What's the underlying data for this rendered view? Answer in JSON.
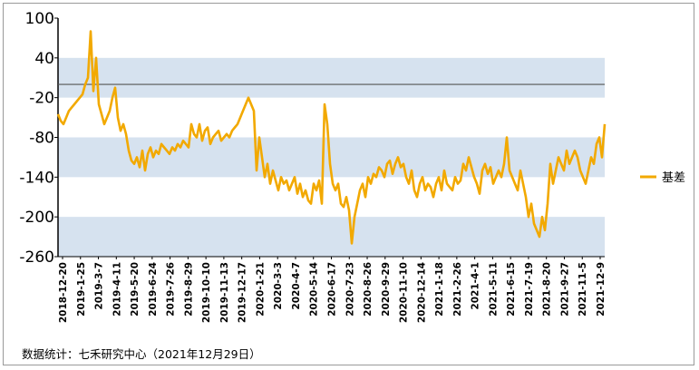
{
  "chart_data": {
    "type": "line",
    "title": "",
    "xlabel": "",
    "ylabel": "",
    "ylim": [
      -260,
      100
    ],
    "y_ticks": [
      100,
      40,
      -20,
      -80,
      -140,
      -200,
      -260
    ],
    "x_tick_labels": [
      "2018-12-20",
      "2019-1-25",
      "2019-3-7",
      "2019-4-11",
      "2019-5-20",
      "2019-6-24",
      "2019-7-26",
      "2019-8-29",
      "2019-10-10",
      "2019-11-13",
      "2019-12-17",
      "2020-1-21",
      "2020-3-3",
      "2020-4-7",
      "2020-5-14",
      "2020-6-17",
      "2020-7-23",
      "2020-8-26",
      "2020-9-29",
      "2020-11-10",
      "2020-12-14",
      "2021-1-18",
      "2021-2-26",
      "2021-4-1",
      "2021-5-11",
      "2021-6-15",
      "2021-7-19",
      "2021-8-20",
      "2021-9-27",
      "2021-11-5",
      "2021-12-9"
    ],
    "reference_line": 0,
    "shaded_bands": [
      [
        -20,
        40
      ],
      [
        -140,
        -80
      ],
      [
        -260,
        -200
      ]
    ],
    "legend_position": "right",
    "series": [
      {
        "name": "基差",
        "color": "#f2a900",
        "values": [
          -45,
          -55,
          -60,
          -50,
          -40,
          -35,
          -30,
          -25,
          -20,
          -15,
          0,
          10,
          80,
          -10,
          40,
          -30,
          -45,
          -60,
          -50,
          -40,
          -20,
          -5,
          -50,
          -70,
          -60,
          -75,
          -100,
          -115,
          -120,
          -110,
          -125,
          -100,
          -130,
          -105,
          -95,
          -110,
          -100,
          -105,
          -90,
          -95,
          -100,
          -105,
          -95,
          -100,
          -90,
          -95,
          -85,
          -90,
          -95,
          -60,
          -75,
          -80,
          -60,
          -85,
          -70,
          -65,
          -90,
          -80,
          -75,
          -70,
          -85,
          -80,
          -75,
          -80,
          -70,
          -65,
          -60,
          -50,
          -40,
          -30,
          -20,
          -30,
          -40,
          -130,
          -80,
          -110,
          -140,
          -120,
          -150,
          -130,
          -145,
          -160,
          -140,
          -150,
          -145,
          -160,
          -150,
          -140,
          -165,
          -150,
          -170,
          -160,
          -175,
          -180,
          -150,
          -160,
          -145,
          -180,
          -30,
          -60,
          -120,
          -150,
          -160,
          -150,
          -180,
          -185,
          -170,
          -190,
          -240,
          -200,
          -180,
          -160,
          -150,
          -170,
          -140,
          -150,
          -135,
          -140,
          -125,
          -130,
          -140,
          -120,
          -115,
          -135,
          -120,
          -110,
          -125,
          -120,
          -140,
          -150,
          -130,
          -160,
          -170,
          -150,
          -140,
          -160,
          -150,
          -155,
          -170,
          -150,
          -140,
          -160,
          -130,
          -150,
          -155,
          -160,
          -140,
          -150,
          -145,
          -120,
          -130,
          -110,
          -125,
          -140,
          -150,
          -165,
          -130,
          -120,
          -135,
          -125,
          -150,
          -140,
          -130,
          -140,
          -120,
          -80,
          -130,
          -140,
          -150,
          -160,
          -130,
          -150,
          -170,
          -200,
          -180,
          -210,
          -220,
          -230,
          -200,
          -220,
          -180,
          -120,
          -150,
          -130,
          -110,
          -120,
          -130,
          -100,
          -120,
          -110,
          -100,
          -110,
          -130,
          -140,
          -150,
          -130,
          -110,
          -120,
          -90,
          -80,
          -110,
          -60
        ]
      }
    ]
  },
  "legend": {
    "label": "基差"
  },
  "footer": {
    "source": "数据统计：七禾研究中心（2021年12月29日）"
  }
}
